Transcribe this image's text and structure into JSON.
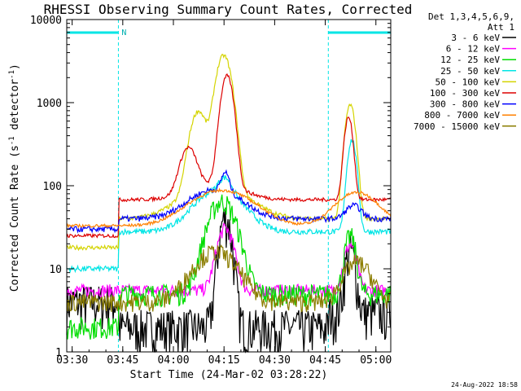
{
  "chart_data": {
    "type": "line",
    "title": "RHESSI Observing Summary Count Rates, Corrected",
    "xlabel": "Start Time (24-Mar-02 03:28:22)",
    "ylabel_main": "Corrected Count Rate (s",
    "ylabel_sup": "-1",
    "ylabel_rest": " detector",
    "ylabel_sup2": "-1",
    "ylabel_end": ")",
    "yscale": "log",
    "ylim": [
      1,
      10000
    ],
    "xlim_minutes": [
      0,
      96
    ],
    "x_ticks": [
      "03:30",
      "03:45",
      "04:00",
      "04:15",
      "04:30",
      "04:45",
      "05:00"
    ],
    "y_ticks": [
      "1",
      "10",
      "100",
      "1000",
      "10000"
    ],
    "detector_label": "Det 1,3,4,5,6,9,",
    "attenuator_label": "Att 1",
    "night_marker": "N",
    "legend_position": "right",
    "series": [
      {
        "name": "3 - 6 keV",
        "color": "#000000"
      },
      {
        "name": "6 - 12 keV",
        "color": "#ff00ff"
      },
      {
        "name": "12 - 25 keV",
        "color": "#00dd00"
      },
      {
        "name": "25 - 50 keV",
        "color": "#00e5e5"
      },
      {
        "name": "50 - 100 keV",
        "color": "#d4d400"
      },
      {
        "name": "100 - 300 keV",
        "color": "#dd0000"
      },
      {
        "name": "300 - 800 keV",
        "color": "#0000ff"
      },
      {
        "name": "800 - 7000 keV",
        "color": "#ff8000"
      },
      {
        "name": "7000 - 15000 keV",
        "color": "#8b7d00"
      }
    ]
  },
  "footer": {
    "timestamp": "24-Aug-2022 18:58"
  }
}
